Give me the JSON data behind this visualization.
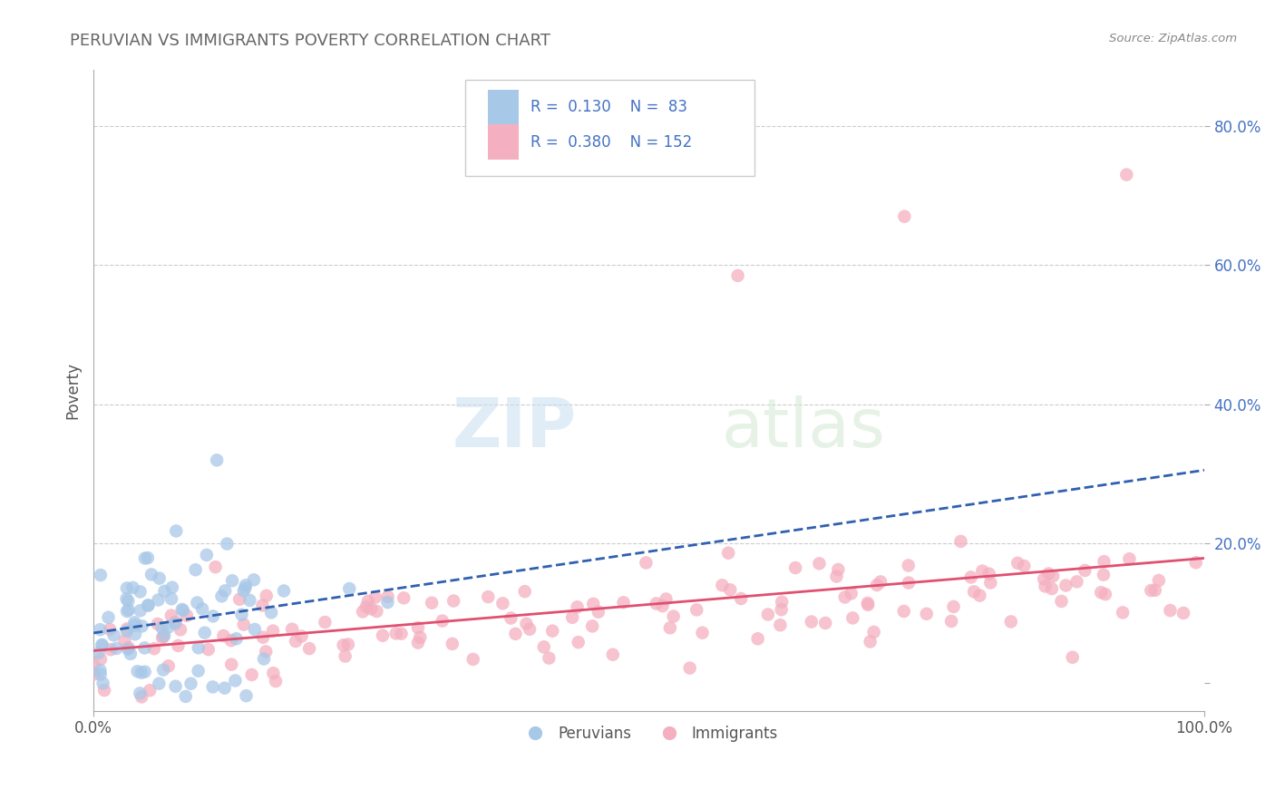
{
  "title": "PERUVIAN VS IMMIGRANTS POVERTY CORRELATION CHART",
  "source_text": "Source: ZipAtlas.com",
  "ylabel": "Poverty",
  "xlim": [
    0,
    1
  ],
  "ylim": [
    -0.04,
    0.88
  ],
  "yticks": [
    0.0,
    0.2,
    0.4,
    0.6,
    0.8
  ],
  "ytick_labels": [
    "",
    "20.0%",
    "40.0%",
    "60.0%",
    "80.0%"
  ],
  "xticks": [
    0.0,
    1.0
  ],
  "xtick_labels": [
    "0.0%",
    "100.0%"
  ],
  "blue_color": "#a8c8e8",
  "pink_color": "#f4afc0",
  "blue_line_color": "#3060b0",
  "pink_line_color": "#e05070",
  "R_blue": 0.13,
  "N_blue": 83,
  "R_pink": 0.38,
  "N_pink": 152,
  "watermark_zip": "ZIP",
  "watermark_atlas": "atlas",
  "peruvians_label": "Peruvians",
  "immigrants_label": "Immigrants",
  "grid_color": "#cccccc",
  "title_color": "#666666",
  "source_color": "#888888",
  "seed": 7
}
